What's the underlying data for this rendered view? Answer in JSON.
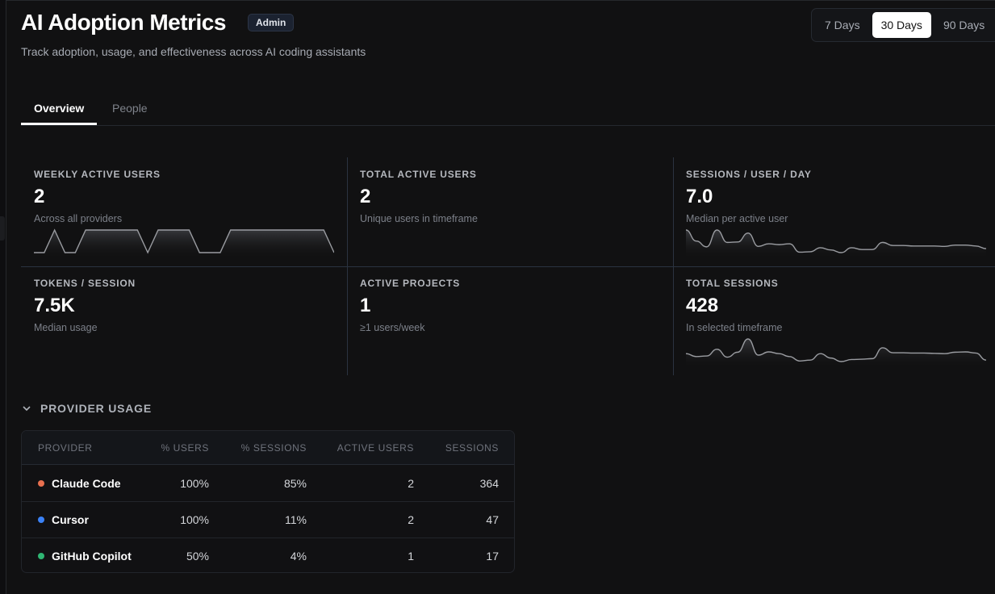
{
  "header": {
    "title": "AI Adoption Metrics",
    "badge": "Admin",
    "subtitle": "Track adoption, usage, and effectiveness across AI coding assistants"
  },
  "range": {
    "options": [
      "7 Days",
      "30 Days",
      "90 Days"
    ],
    "selected": "30 Days"
  },
  "tabs": [
    {
      "label": "Overview",
      "active": true
    },
    {
      "label": "People",
      "active": false
    }
  ],
  "metrics": [
    {
      "label": "WEEKLY ACTIVE USERS",
      "value": "2",
      "sub": "Across all providers"
    },
    {
      "label": "TOTAL ACTIVE USERS",
      "value": "2",
      "sub": "Unique users in timeframe"
    },
    {
      "label": "SESSIONS / USER / DAY",
      "value": "7.0",
      "sub": "Median per active user"
    },
    {
      "label": "TOKENS / SESSION",
      "value": "7.5K",
      "sub": "Median usage"
    },
    {
      "label": "ACTIVE PROJECTS",
      "value": "1",
      "sub": "≥1 users/week"
    },
    {
      "label": "TOTAL SESSIONS",
      "value": "428",
      "sub": "In selected timeframe"
    }
  ],
  "chart_data": [
    {
      "type": "area",
      "metric": "WEEKLY ACTIVE USERS",
      "values": [
        1,
        1,
        2,
        1,
        1,
        2,
        2,
        2,
        2,
        2,
        2,
        1,
        2,
        2,
        2,
        2,
        1,
        1,
        1,
        2,
        2,
        2,
        2,
        2,
        2,
        2,
        2,
        2,
        2,
        1
      ]
    },
    {
      "type": "area",
      "metric": "SESSIONS / USER / DAY",
      "values": [
        10,
        7.5,
        6.2,
        10,
        7.2,
        7.3,
        9.3,
        6.3,
        6.9,
        6.7,
        6.9,
        5,
        5.1,
        6,
        5.5,
        4.9,
        6,
        5.6,
        5.6,
        7.2,
        6.5,
        6.5,
        6.4,
        6.4,
        6.4,
        6.3,
        6.6,
        6.6,
        6.4,
        5.8
      ]
    },
    {
      "type": "area",
      "metric": "TOTAL SESSIONS",
      "values": [
        14,
        13,
        13.2,
        15.5,
        12.8,
        14.5,
        19,
        13.5,
        14.6,
        14,
        13,
        11.5,
        11.8,
        14,
        12.5,
        11.3,
        12,
        12.1,
        12.3,
        16,
        14.3,
        14.3,
        14.2,
        14.2,
        14.1,
        14,
        14.5,
        14.6,
        14.2,
        11.8
      ]
    }
  ],
  "provider_usage": {
    "title": "PROVIDER USAGE",
    "columns": [
      "PROVIDER",
      "% USERS",
      "% SESSIONS",
      "ACTIVE USERS",
      "SESSIONS"
    ],
    "rows": [
      {
        "provider": "Claude Code",
        "color": "#e8704f",
        "pct_users": "100%",
        "pct_sessions": "85%",
        "active_users": "2",
        "sessions": "364"
      },
      {
        "provider": "Cursor",
        "color": "#3b82f6",
        "pct_users": "100%",
        "pct_sessions": "11%",
        "active_users": "2",
        "sessions": "47"
      },
      {
        "provider": "GitHub Copilot",
        "color": "#2fb673",
        "pct_users": "50%",
        "pct_sessions": "4%",
        "active_users": "1",
        "sessions": "17"
      }
    ]
  }
}
